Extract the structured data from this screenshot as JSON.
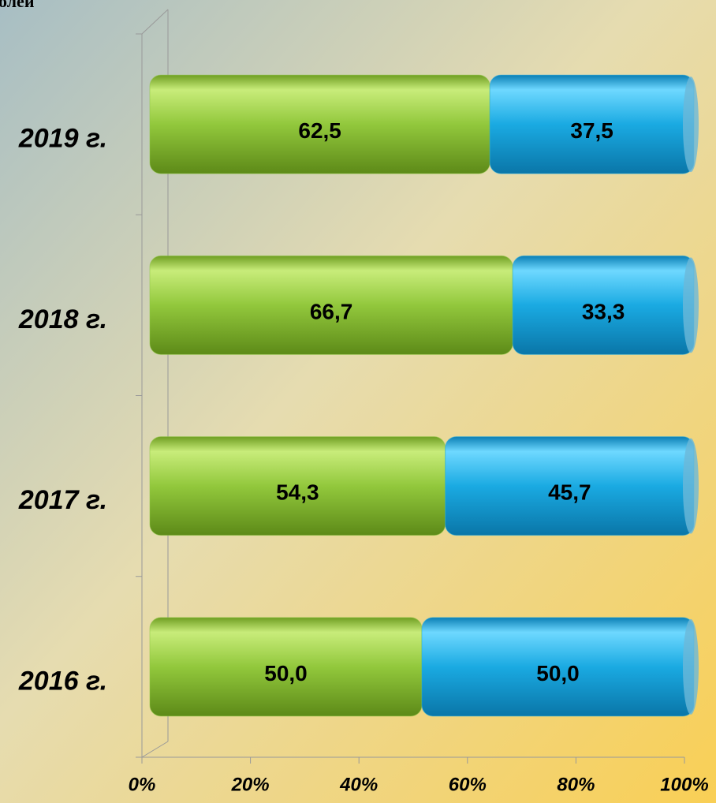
{
  "chart_data": {
    "type": "stacked_bar_horizontal",
    "title": "олей",
    "categories": [
      "2016 г.",
      "2017 г.",
      "2018 г.",
      "2019 г."
    ],
    "series": [
      {
        "color": "#8cc63f",
        "values": [
          50.0,
          54.3,
          66.7,
          62.5
        ],
        "value_labels": [
          "50,0",
          "54,3",
          "66,7",
          "62,5"
        ]
      },
      {
        "color": "#1ba9e1",
        "values": [
          50.0,
          45.7,
          33.3,
          37.5
        ],
        "value_labels": [
          "50,0",
          "45,7",
          "33,3",
          "37,5"
        ]
      }
    ],
    "xlim": [
      0,
      100
    ],
    "xticks": [
      {
        "value": 0,
        "label": "0%"
      },
      {
        "value": 20,
        "label": "20%"
      },
      {
        "value": 40,
        "label": "40%"
      },
      {
        "value": 60,
        "label": "60%"
      },
      {
        "value": 80,
        "label": "80%"
      },
      {
        "value": 100,
        "label": "100%"
      }
    ]
  }
}
